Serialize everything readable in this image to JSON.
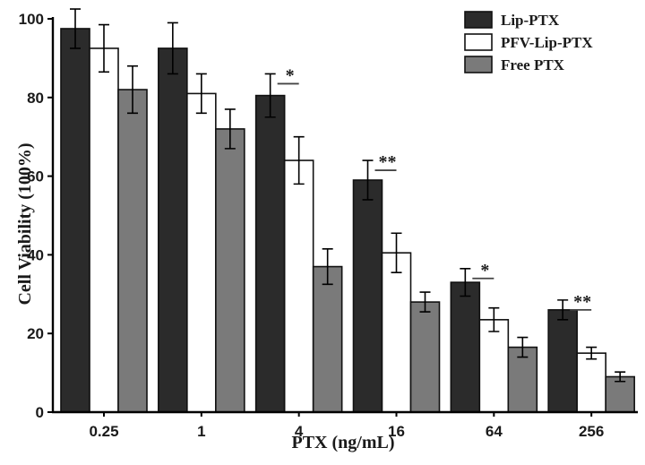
{
  "chart_data": {
    "type": "bar",
    "title": "",
    "xlabel": "PTX (ng/mL)",
    "ylabel": "Cell Viability (100%)",
    "ylim": [
      0,
      100
    ],
    "yticks": [
      0,
      20,
      40,
      60,
      80,
      100
    ],
    "categories": [
      "0.25",
      "1",
      "4",
      "16",
      "64",
      "256"
    ],
    "series": [
      {
        "name": "Lip-PTX",
        "color": "#2b2b2b",
        "values": [
          97.5,
          92.5,
          80.5,
          59,
          33,
          26
        ],
        "errors": [
          5,
          6.5,
          5.5,
          5,
          3.5,
          2.5
        ]
      },
      {
        "name": "PFV-Lip-PTX",
        "color": "#ffffff",
        "values": [
          92.5,
          81,
          64,
          40.5,
          23.5,
          15
        ],
        "errors": [
          6,
          5,
          6,
          5,
          3,
          1.5
        ]
      },
      {
        "name": "Free PTX",
        "color": "#7a7a7a",
        "values": [
          82,
          72,
          37,
          28,
          16.5,
          9
        ],
        "errors": [
          6,
          5,
          4.5,
          2.5,
          2.5,
          1.2
        ]
      }
    ],
    "annotations": [
      {
        "category": "4",
        "text": "*"
      },
      {
        "category": "16",
        "text": "**"
      },
      {
        "category": "64",
        "text": "*"
      },
      {
        "category": "256",
        "text": "**"
      }
    ],
    "legend": {
      "position": "top-right"
    }
  }
}
